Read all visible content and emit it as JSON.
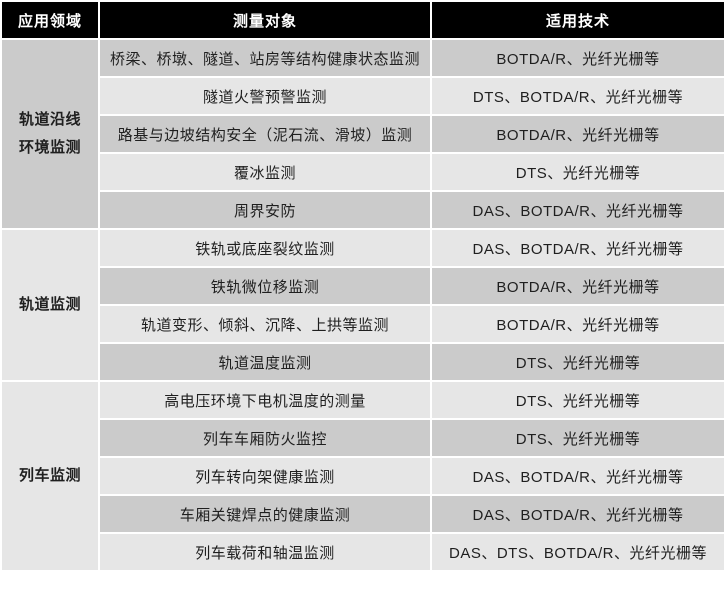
{
  "table": {
    "headers": [
      "应用领域",
      "测量对象",
      "适用技术"
    ],
    "groups": [
      {
        "field_lines": [
          "轨道沿线",
          "环境监测"
        ],
        "rows": [
          {
            "object": "桥梁、桥墩、隧道、站房等结构健康状态监测",
            "tech": "BOTDA/R、光纤光栅等"
          },
          {
            "object": "隧道火警预警监测",
            "tech": "DTS、BOTDA/R、光纤光栅等"
          },
          {
            "object": "路基与边坡结构安全（泥石流、滑坡）监测",
            "tech": "BOTDA/R、光纤光栅等"
          },
          {
            "object": "覆冰监测",
            "tech": "DTS、光纤光栅等"
          },
          {
            "object": "周界安防",
            "tech": "DAS、BOTDA/R、光纤光栅等"
          }
        ]
      },
      {
        "field_lines": [
          "轨道监测"
        ],
        "rows": [
          {
            "object": "铁轨或底座裂纹监测",
            "tech": "DAS、BOTDA/R、光纤光栅等"
          },
          {
            "object": "铁轨微位移监测",
            "tech": "BOTDA/R、光纤光栅等"
          },
          {
            "object": "轨道变形、倾斜、沉降、上拱等监测",
            "tech": "BOTDA/R、光纤光栅等"
          },
          {
            "object": "轨道温度监测",
            "tech": "DTS、光纤光栅等"
          }
        ]
      },
      {
        "field_lines": [
          "列车监测"
        ],
        "rows": [
          {
            "object": "高电压环境下电机温度的测量",
            "tech": "DTS、光纤光栅等"
          },
          {
            "object": "列车车厢防火监控",
            "tech": "DTS、光纤光栅等"
          },
          {
            "object": "列车转向架健康监测",
            "tech": "DAS、BOTDA/R、光纤光栅等"
          },
          {
            "object": "车厢关键焊点的健康监测",
            "tech": "DAS、BOTDA/R、光纤光栅等"
          },
          {
            "object": "列车载荷和轴温监测",
            "tech": "DAS、DTS、BOTDA/R、光纤光栅等"
          }
        ]
      }
    ],
    "colors": {
      "header_bg": "#000000",
      "header_text": "#ffffff",
      "row_medium": "#cbcbcb",
      "row_light": "#e6e6e6",
      "separator": "#ffffff",
      "body_text": "#1f1f1f"
    }
  }
}
